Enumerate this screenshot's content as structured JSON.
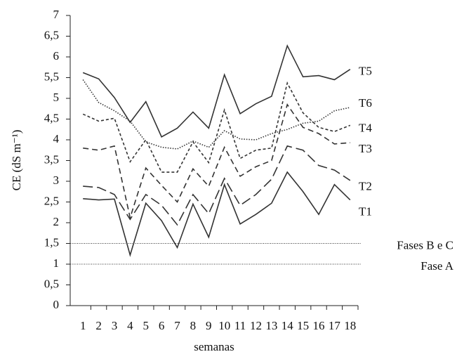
{
  "chart_data": {
    "type": "line",
    "y_label": "CE (dS m⁻¹)",
    "x_label": "semanas",
    "categories": [
      "1",
      "2",
      "3",
      "4",
      "5",
      "6",
      "7",
      "8",
      "9",
      "10",
      "11",
      "12",
      "13",
      "14",
      "15",
      "16",
      "17",
      "18"
    ],
    "series": [
      {
        "name": "T1",
        "color": "#333333",
        "dash": "solid",
        "values": [
          2.58,
          2.55,
          2.57,
          1.22,
          2.47,
          2.05,
          1.4,
          2.45,
          1.65,
          2.92,
          1.97,
          2.2,
          2.47,
          3.22,
          2.75,
          2.2,
          2.92,
          2.55
        ]
      },
      {
        "name": "T2",
        "color": "#333333",
        "dash": "longdash",
        "values": [
          2.88,
          2.85,
          2.68,
          2.08,
          2.68,
          2.42,
          1.95,
          2.68,
          2.22,
          3.07,
          2.42,
          2.68,
          3.05,
          3.85,
          3.75,
          3.38,
          3.27,
          3.02
        ]
      },
      {
        "name": "T3",
        "color": "#333333",
        "dash": "dashed",
        "values": [
          3.8,
          3.75,
          3.85,
          2.12,
          3.32,
          2.9,
          2.5,
          3.3,
          2.88,
          3.82,
          3.12,
          3.35,
          3.5,
          4.85,
          4.3,
          4.15,
          3.9,
          3.93
        ]
      },
      {
        "name": "T4",
        "color": "#333333",
        "dash": "shortdash",
        "values": [
          4.62,
          4.45,
          4.52,
          3.47,
          4.0,
          3.22,
          3.22,
          3.95,
          3.45,
          4.72,
          3.55,
          3.75,
          3.8,
          5.37,
          4.65,
          4.3,
          4.2,
          4.35
        ]
      },
      {
        "name": "T5",
        "color": "#333333",
        "dash": "solid",
        "values": [
          5.62,
          5.47,
          5.02,
          4.42,
          4.92,
          4.07,
          4.28,
          4.67,
          4.28,
          5.57,
          4.63,
          4.87,
          5.05,
          6.27,
          5.52,
          5.55,
          5.45,
          5.7
        ]
      },
      {
        "name": "T6",
        "color": "#333333",
        "dash": "dotted",
        "values": [
          5.45,
          4.9,
          4.7,
          4.45,
          3.95,
          3.82,
          3.78,
          3.97,
          3.82,
          4.22,
          4.02,
          4.0,
          4.15,
          4.25,
          4.4,
          4.45,
          4.7,
          4.78
        ]
      }
    ],
    "reference_lines": [
      {
        "value": 1.5,
        "label": "Fases B e C"
      },
      {
        "value": 1,
        "label": "Fase A"
      }
    ],
    "ylim": [
      0,
      7
    ],
    "yticks": [
      0,
      {
        "value": 0.5,
        "label": "0,5"
      },
      1,
      {
        "value": 1.5,
        "label": "1,5"
      },
      2,
      {
        "value": 2.5,
        "label": "2,5"
      },
      3,
      {
        "value": 3.5,
        "label": "3,5"
      },
      4,
      {
        "value": 4.5,
        "label": "4,5"
      },
      5,
      {
        "value": 5.5,
        "label": "5,5"
      },
      6,
      {
        "value": 6.5,
        "label": "6,5"
      },
      7
    ],
    "grid": false
  }
}
